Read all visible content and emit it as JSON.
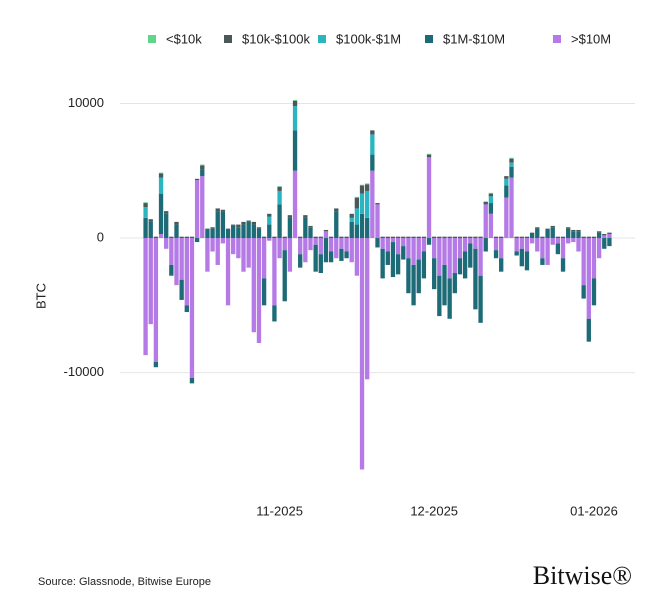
{
  "chart_data": {
    "type": "bar",
    "stacked": true,
    "y_label": "BTC",
    "source": "Source: Glassnode, Bitwise Europe",
    "logo": "Bitwise®",
    "ylim": [
      -18500,
      11000
    ],
    "yticks": [
      10000,
      0,
      -10000
    ],
    "grid": true,
    "legend": "top",
    "categories": [
      null,
      null,
      null,
      null,
      null,
      null,
      null,
      null,
      null,
      null,
      null,
      null,
      null,
      null,
      null,
      null,
      null,
      null,
      null,
      null,
      null,
      null,
      null,
      null,
      null,
      null,
      "11-2025",
      null,
      null,
      null,
      null,
      null,
      null,
      null,
      null,
      null,
      null,
      null,
      null,
      null,
      null,
      null,
      null,
      null,
      null,
      null,
      null,
      null,
      null,
      null,
      null,
      null,
      null,
      null,
      null,
      null,
      "12-2025",
      null,
      null,
      null,
      null,
      null,
      null,
      null,
      null,
      null,
      null,
      null,
      null,
      null,
      null,
      null,
      null,
      null,
      null,
      null,
      null,
      null,
      null,
      null,
      null,
      null,
      null,
      null,
      null,
      null,
      null,
      "01-2026",
      null,
      null,
      null
    ],
    "series": [
      {
        "name": ">$10M",
        "color": "#b57ae6",
        "values": [
          -8700,
          -6400,
          -9200,
          300,
          -800,
          -2000,
          -3500,
          -3100,
          -5000,
          -10400,
          4300,
          4600,
          -2500,
          -1000,
          -2000,
          -400,
          -5000,
          -1200,
          -1500,
          -2500,
          -2200,
          -7000,
          -7800,
          -3000,
          -200,
          -5000,
          -1500,
          -900,
          -2500,
          5000,
          -1200,
          -1800,
          -900,
          -500,
          -1200,
          500,
          -1000,
          -1500,
          -800,
          -1000,
          -1800,
          -2800,
          -17200,
          -10500,
          5000,
          2500,
          -800,
          -1000,
          -300,
          -1200,
          -600,
          -1500,
          -2000,
          -1600,
          -1000,
          6000,
          -1500,
          -2800,
          -2000,
          -3000,
          -2600,
          -1500,
          -1000,
          -400,
          -800,
          -2800,
          2500,
          1800,
          -900,
          -1500,
          3000,
          4500,
          -1000,
          -800,
          -1000,
          -400,
          -1000,
          -1500,
          -2000,
          -500,
          -400,
          -1500,
          -400,
          -300,
          -1000,
          -3500,
          -6000,
          -3000,
          -1500,
          200,
          300
        ]
      },
      {
        "name": "$1M-$10M",
        "color": "#1e6b78",
        "values": [
          1500,
          1200,
          -400,
          3000,
          1800,
          -800,
          1000,
          -1500,
          -500,
          -400,
          -300,
          500,
          600,
          700,
          2000,
          2000,
          600,
          900,
          800,
          1000,
          1200,
          1000,
          700,
          -2000,
          1000,
          -1200,
          2500,
          -3800,
          1500,
          3000,
          -1000,
          1500,
          800,
          -2000,
          -1400,
          -1800,
          -800,
          2000,
          -900,
          -500,
          1200,
          1000,
          1800,
          1500,
          1200,
          -700,
          -2200,
          -1000,
          -2600,
          -1500,
          -1000,
          -2600,
          -3000,
          -2500,
          -2000,
          -500,
          -2300,
          -3000,
          -3000,
          -3000,
          -1500,
          -1200,
          -2000,
          -1800,
          -4500,
          -3500,
          -1000,
          800,
          -600,
          -1000,
          900,
          800,
          -300,
          -1300,
          -1400,
          300,
          700,
          -500,
          600,
          800,
          -800,
          -1000,
          700,
          500,
          500,
          -1000,
          -1700,
          -2000,
          400,
          -800,
          -600
        ]
      },
      {
        "name": "$100k-$1M",
        "color": "#2bb5c0",
        "values": [
          800,
          0,
          0,
          1200,
          0,
          0,
          0,
          0,
          0,
          0,
          0,
          0,
          0,
          0,
          0,
          0,
          0,
          0,
          0,
          0,
          0,
          0,
          0,
          0,
          600,
          0,
          1000,
          0,
          0,
          1800,
          0,
          0,
          0,
          0,
          0,
          0,
          0,
          0,
          0,
          0,
          300,
          1200,
          1500,
          2000,
          1500,
          0,
          0,
          0,
          0,
          0,
          0,
          0,
          0,
          0,
          0,
          0,
          0,
          0,
          0,
          0,
          0,
          0,
          0,
          0,
          0,
          0,
          0,
          500,
          0,
          0,
          500,
          300,
          0,
          0,
          0,
          0,
          0,
          0,
          0,
          0,
          0,
          0,
          0,
          0,
          0,
          0,
          0,
          0,
          0,
          0,
          0
        ]
      },
      {
        "name": "$10k-$100k",
        "color": "#4a5858",
        "values": [
          300,
          200,
          100,
          300,
          200,
          100,
          200,
          100,
          100,
          100,
          100,
          300,
          100,
          100,
          200,
          100,
          100,
          100,
          200,
          200,
          100,
          200,
          100,
          100,
          200,
          100,
          300,
          100,
          200,
          400,
          100,
          200,
          100,
          100,
          100,
          100,
          100,
          200,
          100,
          100,
          300,
          800,
          600,
          500,
          300,
          100,
          100,
          100,
          100,
          100,
          100,
          100,
          100,
          100,
          100,
          200,
          100,
          100,
          100,
          100,
          100,
          100,
          100,
          100,
          100,
          100,
          200,
          200,
          100,
          100,
          200,
          300,
          100,
          100,
          100,
          100,
          100,
          100,
          100,
          100,
          100,
          100,
          100,
          100,
          100,
          100,
          100,
          100,
          100,
          100,
          100
        ]
      },
      {
        "name": "<$10k",
        "color": "#5fd68a",
        "values": [
          60,
          0,
          0,
          60,
          0,
          0,
          0,
          0,
          0,
          0,
          0,
          60,
          0,
          0,
          0,
          0,
          0,
          0,
          0,
          0,
          0,
          0,
          0,
          0,
          0,
          0,
          60,
          0,
          0,
          60,
          0,
          0,
          0,
          0,
          0,
          0,
          0,
          0,
          0,
          0,
          0,
          60,
          60,
          60,
          0,
          0,
          0,
          0,
          0,
          0,
          0,
          0,
          0,
          0,
          0,
          60,
          0,
          0,
          0,
          0,
          0,
          0,
          0,
          0,
          0,
          0,
          0,
          60,
          0,
          0,
          0,
          60,
          0,
          0,
          0,
          0,
          0,
          0,
          0,
          0,
          0,
          0,
          0,
          0,
          0,
          0,
          0,
          0,
          0,
          0,
          0
        ]
      }
    ]
  }
}
